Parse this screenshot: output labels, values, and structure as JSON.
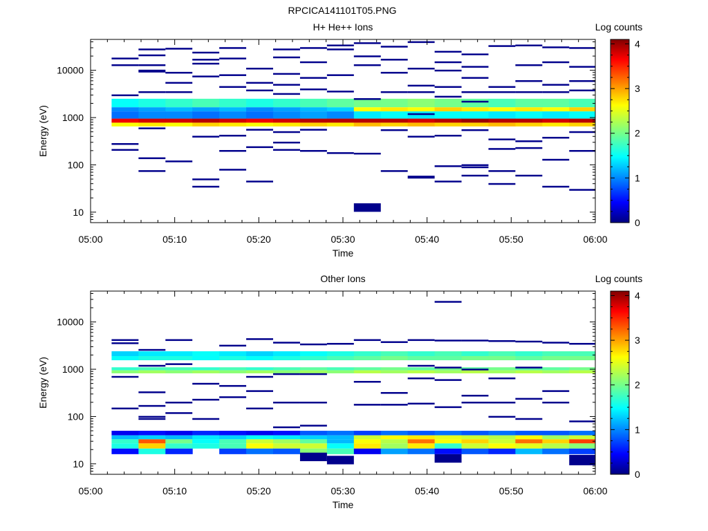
{
  "figure_title": "RPCICA141101T05.PNG",
  "chart_data": [
    {
      "type": "heatmap",
      "title": "H+ He++ Ions",
      "xlabel": "Time",
      "ylabel": "Energy (eV)",
      "x_tick_labels": [
        "05:00",
        "05:10",
        "05:20",
        "05:30",
        "05:40",
        "05:50",
        "06:00"
      ],
      "x_range": [
        "05:00",
        "06:00"
      ],
      "y_scale": "log",
      "y_tick_labels": [
        "10",
        "100",
        "1000",
        "10000"
      ],
      "y_range": [
        6,
        45000
      ],
      "colorbar_label": "Log counts",
      "colorbar_range": [
        0,
        4.1
      ],
      "colorbar_ticks": [
        "0",
        "1",
        "2",
        "3",
        "4"
      ],
      "colormap": "jet",
      "time_bins_minutes": [
        2.5,
        5.7,
        8.9,
        12.1,
        15.3,
        18.5,
        21.7,
        24.9,
        28.1,
        31.3,
        34.5,
        37.7,
        40.9,
        44.1,
        47.3,
        50.5,
        53.7,
        56.9,
        60.0
      ],
      "bands": [
        {
          "e_low": 1650,
          "e_high": 2500,
          "values": [
            1.5,
            1.6,
            1.7,
            1.8,
            1.7,
            1.6,
            1.7,
            1.8,
            1.9,
            2.0,
            2.0,
            2.1,
            2.0,
            1.9,
            1.8,
            1.9,
            1.9,
            1.8
          ]
        },
        {
          "e_low": 1350,
          "e_high": 1650,
          "values": [
            1.0,
            1.1,
            1.2,
            1.1,
            1.2,
            1.0,
            1.1,
            1.2,
            1.3,
            2.6,
            2.7,
            2.6,
            2.8,
            2.7,
            2.6,
            2.7,
            2.6,
            2.8
          ]
        },
        {
          "e_low": 950,
          "e_high": 1350,
          "values": [
            0.9,
            1.0,
            1.0,
            0.9,
            1.0,
            0.9,
            1.0,
            1.1,
            1.0,
            1.4,
            1.5,
            1.4,
            1.5,
            1.5,
            1.4,
            1.5,
            1.4,
            1.5
          ]
        },
        {
          "e_low": 780,
          "e_high": 950,
          "values": [
            3.7,
            3.8,
            3.8,
            3.9,
            3.8,
            3.7,
            3.8,
            3.9,
            3.9,
            3.9,
            3.9,
            3.8,
            3.9,
            4.0,
            3.9,
            3.9,
            3.8,
            3.9
          ]
        },
        {
          "e_low": 650,
          "e_high": 780,
          "values": [
            2.6,
            2.7,
            2.6,
            2.8,
            2.7,
            2.6,
            2.7,
            2.8,
            2.7,
            2.9,
            2.8,
            2.9,
            2.8,
            2.8,
            2.9,
            2.8,
            2.7,
            2.8
          ]
        }
      ],
      "sparse": [
        {
          "t": 3,
          "e": 13000
        },
        {
          "t": 3,
          "e": 18000
        },
        {
          "t": 3,
          "e": 280
        },
        {
          "t": 3,
          "e": 210
        },
        {
          "t": 3,
          "e": 3000
        },
        {
          "t": 5,
          "e": 28000
        },
        {
          "t": 5,
          "e": 21000
        },
        {
          "t": 5,
          "e": 10000
        },
        {
          "t": 5,
          "e": 3500
        },
        {
          "t": 5,
          "e": 600
        },
        {
          "t": 5,
          "e": 140
        },
        {
          "t": 6,
          "e": 9500
        },
        {
          "t": 6,
          "e": 13000
        },
        {
          "t": 6,
          "e": 75
        },
        {
          "t": 8,
          "e": 29000
        },
        {
          "t": 8,
          "e": 9000
        },
        {
          "t": 8,
          "e": 5500
        },
        {
          "t": 8,
          "e": 3500
        },
        {
          "t": 8,
          "e": 120
        },
        {
          "t": 10,
          "e": 24000
        },
        {
          "t": 10,
          "e": 17000
        },
        {
          "t": 10,
          "e": 14000
        },
        {
          "t": 10,
          "e": 7500
        },
        {
          "t": 10,
          "e": 400
        },
        {
          "t": 10,
          "e": 50
        },
        {
          "t": 10,
          "e": 35
        },
        {
          "t": 12,
          "e": 30000
        },
        {
          "t": 12,
          "e": 18000
        },
        {
          "t": 12,
          "e": 8000
        },
        {
          "t": 12,
          "e": 4500
        },
        {
          "t": 12,
          "e": 420
        },
        {
          "t": 12,
          "e": 200
        },
        {
          "t": 12,
          "e": 80
        },
        {
          "t": 14,
          "e": 11000
        },
        {
          "t": 14,
          "e": 5500
        },
        {
          "t": 14,
          "e": 3800
        },
        {
          "t": 14,
          "e": 560
        },
        {
          "t": 14,
          "e": 240
        },
        {
          "t": 14,
          "e": 45
        },
        {
          "t": 16,
          "e": 28000
        },
        {
          "t": 16,
          "e": 19000
        },
        {
          "t": 16,
          "e": 8500
        },
        {
          "t": 16,
          "e": 5000
        },
        {
          "t": 16,
          "e": 3200
        },
        {
          "t": 16,
          "e": 500
        },
        {
          "t": 16,
          "e": 300
        },
        {
          "t": 16,
          "e": 210
        },
        {
          "t": 18,
          "e": 30000
        },
        {
          "t": 18,
          "e": 15000
        },
        {
          "t": 18,
          "e": 7000
        },
        {
          "t": 18,
          "e": 4000
        },
        {
          "t": 18,
          "e": 560
        },
        {
          "t": 18,
          "e": 200
        },
        {
          "t": 20,
          "e": 34000
        },
        {
          "t": 20,
          "e": 28000
        },
        {
          "t": 20,
          "e": 8000
        },
        {
          "t": 20,
          "e": 3600
        },
        {
          "t": 20,
          "e": 180
        },
        {
          "t": 21.5,
          "e": 38000
        },
        {
          "t": 21.5,
          "e": 20000
        },
        {
          "t": 21.5,
          "e": 13000
        },
        {
          "t": 21.5,
          "e": 2500
        },
        {
          "t": 21.5,
          "e": 175
        },
        {
          "t": 21.5,
          "e": 12.5,
          "h": 0.18
        },
        {
          "t": 24,
          "e": 32000
        },
        {
          "t": 24,
          "e": 17000
        },
        {
          "t": 24,
          "e": 9000
        },
        {
          "t": 24,
          "e": 3500
        },
        {
          "t": 24,
          "e": 550
        },
        {
          "t": 24,
          "e": 75
        },
        {
          "t": 26,
          "e": 40000
        },
        {
          "t": 26,
          "e": 11000
        },
        {
          "t": 26,
          "e": 4800
        },
        {
          "t": 26,
          "e": 3500
        },
        {
          "t": 26,
          "e": 1200
        },
        {
          "t": 26,
          "e": 400
        },
        {
          "t": 26,
          "e": 55,
          "h": 0.06
        },
        {
          "t": 28,
          "e": 25000
        },
        {
          "t": 28,
          "e": 15000
        },
        {
          "t": 28,
          "e": 10000
        },
        {
          "t": 28,
          "e": 4500
        },
        {
          "t": 28,
          "e": 2800
        },
        {
          "t": 28,
          "e": 420
        },
        {
          "t": 28,
          "e": 95
        },
        {
          "t": 28,
          "e": 45
        },
        {
          "t": 30,
          "e": 22000
        },
        {
          "t": 30,
          "e": 12000
        },
        {
          "t": 30,
          "e": 7000
        },
        {
          "t": 30,
          "e": 3500
        },
        {
          "t": 30,
          "e": 2200
        },
        {
          "t": 30,
          "e": 550
        },
        {
          "t": 30,
          "e": 100
        },
        {
          "t": 30,
          "e": 90
        },
        {
          "t": 30,
          "e": 60
        },
        {
          "t": 32,
          "e": 33000
        },
        {
          "t": 32,
          "e": 4500
        },
        {
          "t": 32,
          "e": 3500
        },
        {
          "t": 32,
          "e": 350
        },
        {
          "t": 32,
          "e": 220
        },
        {
          "t": 32,
          "e": 75
        },
        {
          "t": 32,
          "e": 40
        },
        {
          "t": 34,
          "e": 34000
        },
        {
          "t": 34,
          "e": 13000
        },
        {
          "t": 34,
          "e": 6000
        },
        {
          "t": 34,
          "e": 3500
        },
        {
          "t": 34,
          "e": 320
        },
        {
          "t": 34,
          "e": 230
        },
        {
          "t": 34,
          "e": 60
        },
        {
          "t": 36,
          "e": 31000
        },
        {
          "t": 36,
          "e": 15000
        },
        {
          "t": 36,
          "e": 5000
        },
        {
          "t": 36,
          "e": 3500
        },
        {
          "t": 36,
          "e": 380
        },
        {
          "t": 36,
          "e": 130
        },
        {
          "t": 36,
          "e": 35
        },
        {
          "t": 38,
          "e": 30000
        },
        {
          "t": 38,
          "e": 12000
        },
        {
          "t": 38,
          "e": 6000
        },
        {
          "t": 38,
          "e": 3800
        },
        {
          "t": 38,
          "e": 500
        },
        {
          "t": 38,
          "e": 200
        },
        {
          "t": 38,
          "e": 30
        }
      ]
    },
    {
      "type": "heatmap",
      "title": "Other Ions",
      "xlabel": "Time",
      "ylabel": "Energy (eV)",
      "x_tick_labels": [
        "05:00",
        "05:10",
        "05:20",
        "05:30",
        "05:40",
        "05:50",
        "06:00"
      ],
      "x_range": [
        "05:00",
        "06:00"
      ],
      "y_scale": "log",
      "y_tick_labels": [
        "10",
        "100",
        "1000",
        "10000"
      ],
      "y_range": [
        6,
        45000
      ],
      "colorbar_label": "Log counts",
      "colorbar_range": [
        0,
        4.1
      ],
      "colorbar_ticks": [
        "0",
        "1",
        "2",
        "3",
        "4"
      ],
      "colormap": "jet",
      "time_bins_minutes": [
        2.5,
        5.7,
        8.9,
        12.1,
        15.3,
        18.5,
        21.7,
        24.9,
        28.1,
        31.3,
        34.5,
        37.7,
        40.9,
        44.1,
        47.3,
        50.5,
        53.7,
        56.9,
        60.0
      ],
      "bands": [
        {
          "e_low": 1900,
          "e_high": 2400,
          "values": [
            1.3,
            1.4,
            1.4,
            1.5,
            1.4,
            1.3,
            1.4,
            1.5,
            1.6,
            1.7,
            1.8,
            1.7,
            1.8,
            1.7,
            1.8,
            1.7,
            1.8,
            1.8
          ]
        },
        {
          "e_low": 1550,
          "e_high": 1900,
          "values": [
            1.5,
            1.6,
            1.6,
            1.5,
            1.6,
            1.5,
            1.6,
            1.7,
            1.8,
            1.9,
            2.0,
            1.9,
            1.9,
            2.0,
            2.0,
            1.9,
            2.0,
            2.0
          ]
        },
        {
          "e_low": 950,
          "e_high": 1100,
          "values": [
            1.7,
            1.8,
            1.8,
            1.7,
            1.8,
            1.7,
            1.8,
            1.9,
            1.8,
            1.9,
            2.0,
            1.9,
            2.0,
            1.9,
            2.0,
            1.9,
            1.9,
            2.0
          ]
        },
        {
          "e_low": 820,
          "e_high": 950,
          "values": [
            2.1,
            2.2,
            2.1,
            2.2,
            2.1,
            2.2,
            2.1,
            2.2,
            2.1,
            2.3,
            2.2,
            2.3,
            2.2,
            2.3,
            2.2,
            2.3,
            2.2,
            2.3
          ]
        },
        {
          "e_low": 40,
          "e_high": 50,
          "values": [
            0.4,
            0.5,
            0.4,
            0.6,
            0.5,
            0.4,
            0.5,
            0.8,
            0.9,
            0.7,
            0.9,
            0.8,
            0.9,
            0.8,
            0.9,
            0.8,
            0.8,
            0.9
          ]
        },
        {
          "e_low": 33,
          "e_high": 40,
          "values": [
            1.2,
            1.3,
            1.2,
            1.4,
            1.3,
            1.5,
            1.4,
            1.3,
            1.2,
            2.4,
            2.6,
            2.7,
            2.5,
            2.4,
            2.3,
            2.6,
            2.2,
            2.4
          ]
        },
        {
          "e_low": 27,
          "e_high": 33,
          "values": [
            1.7,
            3.3,
            2.0,
            1.5,
            1.8,
            2.4,
            2.2,
            1.9,
            1.2,
            2.6,
            2.3,
            3.2,
            2.6,
            2.8,
            2.4,
            3.2,
            2.8,
            3.4
          ]
        },
        {
          "e_low": 21,
          "e_high": 27,
          "values": [
            1.6,
            2.8,
            1.7,
            1.6,
            1.8,
            2.6,
            2.4,
            2.4,
            1.5,
            2.7,
            2.2,
            2.7,
            1.7,
            2.4,
            2.6,
            2.5,
            2.3,
            2.1
          ]
        },
        {
          "e_low": 16,
          "e_high": 21,
          "values": [
            0.5,
            1.6,
            0.6,
            null,
            0.7,
            0.9,
            0.8,
            2.1,
            1.8,
            0.4,
            1.1,
            0.9,
            0.5,
            0.8,
            0.6,
            1.2,
            0.9,
            0.7
          ]
        }
      ],
      "sparse": [
        {
          "t": 3,
          "e": 4200
        },
        {
          "t": 3,
          "e": 3600
        },
        {
          "t": 3,
          "e": 700
        },
        {
          "t": 3,
          "e": 150
        },
        {
          "t": 5,
          "e": 2600
        },
        {
          "t": 5,
          "e": 330
        },
        {
          "t": 5,
          "e": 90
        },
        {
          "t": 6,
          "e": 1200
        },
        {
          "t": 6,
          "e": 170
        },
        {
          "t": 6,
          "e": 100
        },
        {
          "t": 8,
          "e": 4200
        },
        {
          "t": 8,
          "e": 1300
        },
        {
          "t": 8,
          "e": 200
        },
        {
          "t": 8,
          "e": 120
        },
        {
          "t": 10,
          "e": 500
        },
        {
          "t": 10,
          "e": 230
        },
        {
          "t": 10,
          "e": 90
        },
        {
          "t": 12,
          "e": 3200
        },
        {
          "t": 12,
          "e": 450
        },
        {
          "t": 12,
          "e": 260
        },
        {
          "t": 14,
          "e": 4400
        },
        {
          "t": 14,
          "e": 700
        },
        {
          "t": 14,
          "e": 350
        },
        {
          "t": 14,
          "e": 150
        },
        {
          "t": 16,
          "e": 3700
        },
        {
          "t": 16,
          "e": 800
        },
        {
          "t": 16,
          "e": 200
        },
        {
          "t": 16,
          "e": 60
        },
        {
          "t": 18,
          "e": 3400
        },
        {
          "t": 18,
          "e": 800
        },
        {
          "t": 18,
          "e": 200
        },
        {
          "t": 18,
          "e": 65
        },
        {
          "t": 18,
          "e": 14,
          "h": 0.18
        },
        {
          "t": 20,
          "e": 3500
        },
        {
          "t": 20,
          "e": 12,
          "h": 0.18
        },
        {
          "t": 21.5,
          "e": 4200
        },
        {
          "t": 21.5,
          "e": 550
        },
        {
          "t": 21.5,
          "e": 180
        },
        {
          "t": 24,
          "e": 3800
        },
        {
          "t": 24,
          "e": 320
        },
        {
          "t": 24,
          "e": 180
        },
        {
          "t": 26,
          "e": 4200
        },
        {
          "t": 26,
          "e": 1200
        },
        {
          "t": 26,
          "e": 650
        },
        {
          "t": 26,
          "e": 190
        },
        {
          "t": 28,
          "e": 27000
        },
        {
          "t": 28,
          "e": 4100
        },
        {
          "t": 28,
          "e": 1100
        },
        {
          "t": 28,
          "e": 600
        },
        {
          "t": 28,
          "e": 160
        },
        {
          "t": 28,
          "e": 13,
          "h": 0.18
        },
        {
          "t": 30,
          "e": 4100
        },
        {
          "t": 30,
          "e": 1000
        },
        {
          "t": 30,
          "e": 280
        },
        {
          "t": 30,
          "e": 200
        },
        {
          "t": 32,
          "e": 4000
        },
        {
          "t": 32,
          "e": 650
        },
        {
          "t": 32,
          "e": 200
        },
        {
          "t": 32,
          "e": 100
        },
        {
          "t": 34,
          "e": 3900
        },
        {
          "t": 34,
          "e": 1100
        },
        {
          "t": 34,
          "e": 240
        },
        {
          "t": 34,
          "e": 90
        },
        {
          "t": 36,
          "e": 3700
        },
        {
          "t": 36,
          "e": 350
        },
        {
          "t": 36,
          "e": 200
        },
        {
          "t": 38,
          "e": 3500
        },
        {
          "t": 38,
          "e": 80
        },
        {
          "t": 38,
          "e": 12,
          "h": 0.22
        }
      ]
    }
  ]
}
